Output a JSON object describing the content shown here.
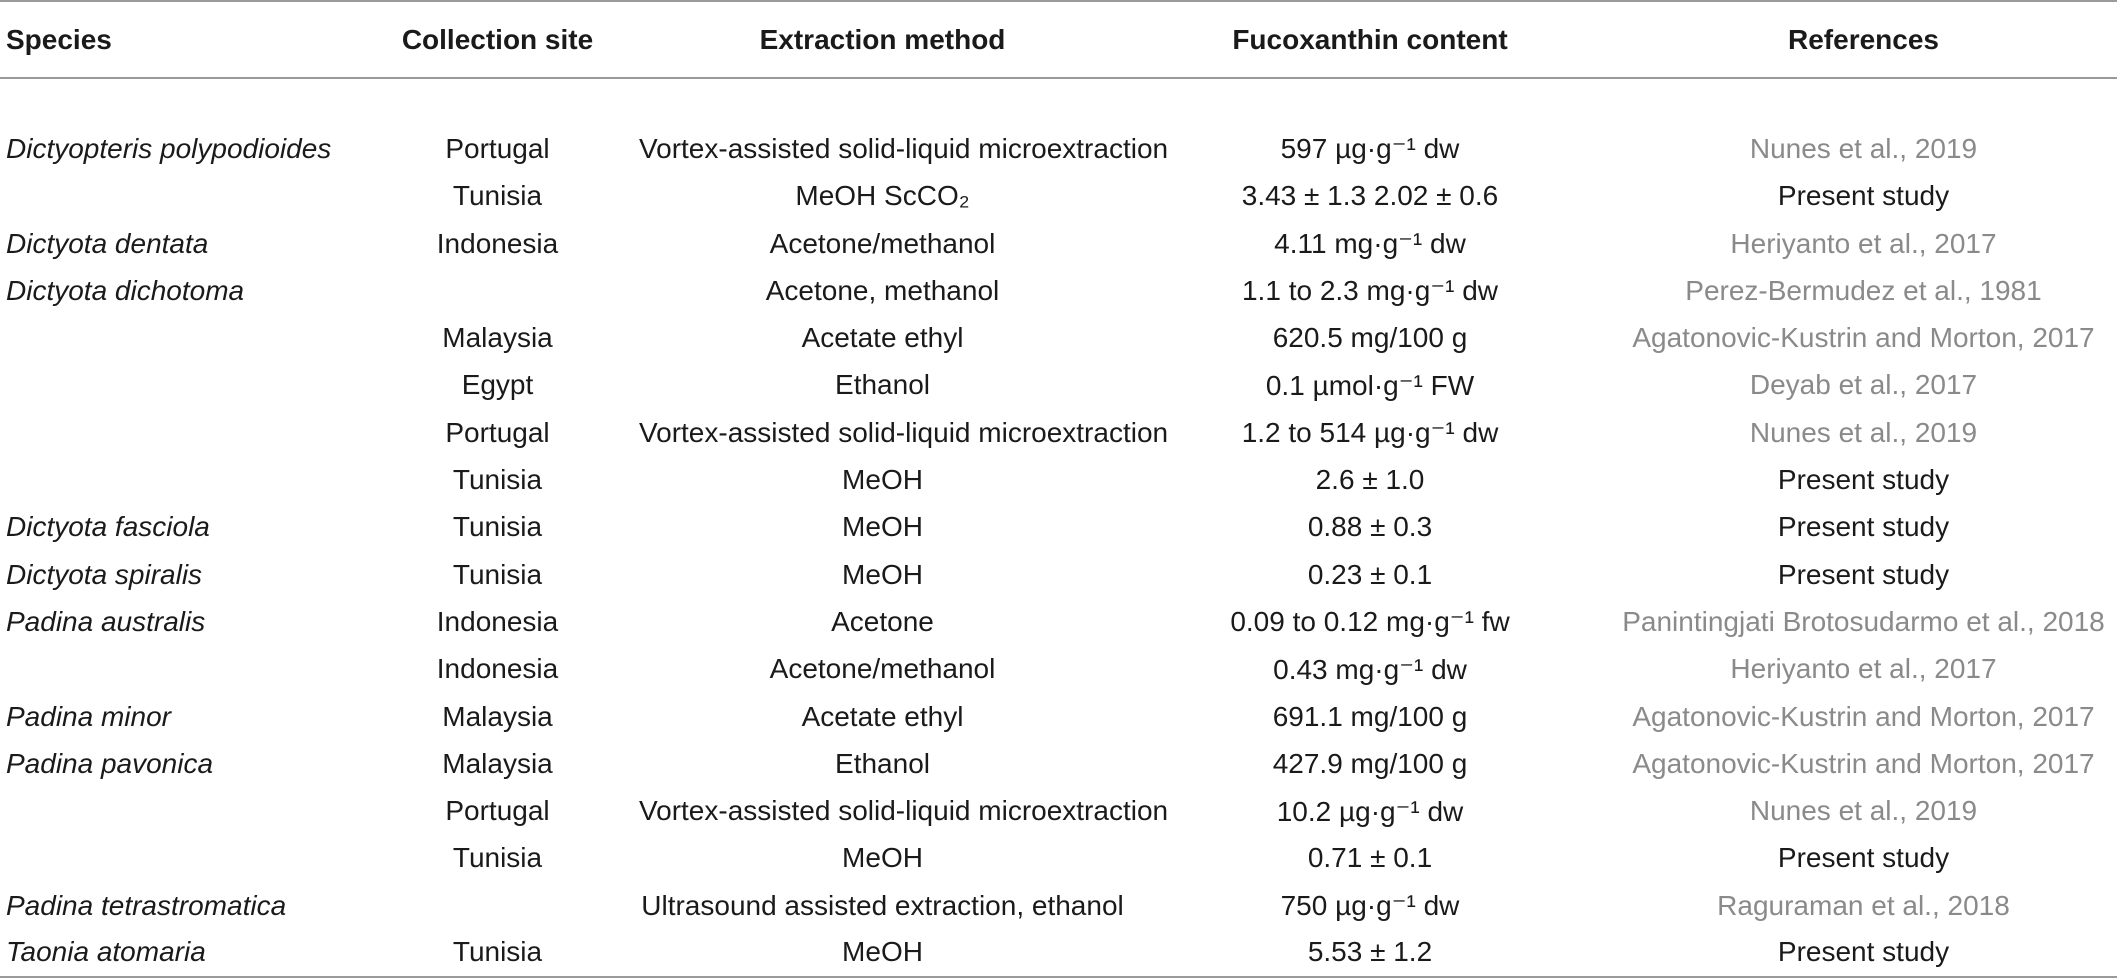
{
  "headers": {
    "species": "Species",
    "collection_site": "Collection site",
    "extraction_method": "Extraction method",
    "fucoxanthin_content": "Fucoxanthin content",
    "references": "References"
  },
  "rows": [
    {
      "species": "Dictyopteris polypodioides",
      "site": "Portugal",
      "method": "Vortex-assisted solid-liquid microextraction",
      "content": "597 µg·g⁻¹ dw",
      "reference": "Nunes et al., 2019",
      "ref_type": "cited"
    },
    {
      "species": "",
      "site": "Tunisia",
      "method": "MeOH ScCO₂",
      "content": "3.43 ± 1.3 2.02 ± 0.6",
      "reference": "Present study",
      "ref_type": "present"
    },
    {
      "species": "Dictyota dentata",
      "site": "Indonesia",
      "method": "Acetone/methanol",
      "content": "4.11 mg·g⁻¹ dw",
      "reference": "Heriyanto et al., 2017",
      "ref_type": "cited"
    },
    {
      "species": "Dictyota dichotoma",
      "site": "",
      "method": "Acetone, methanol",
      "content": "1.1 to 2.3 mg·g⁻¹ dw",
      "reference": "Perez-Bermudez et al., 1981",
      "ref_type": "cited"
    },
    {
      "species": "",
      "site": "Malaysia",
      "method": "Acetate ethyl",
      "content": "620.5 mg/100 g",
      "reference": "Agatonovic-Kustrin and Morton, 2017",
      "ref_type": "cited"
    },
    {
      "species": "",
      "site": "Egypt",
      "method": "Ethanol",
      "content": "0.1 µmol·g⁻¹ FW",
      "reference": "Deyab et al., 2017",
      "ref_type": "cited"
    },
    {
      "species": "",
      "site": "Portugal",
      "method": "Vortex-assisted solid-liquid microextraction",
      "content": "1.2 to 514 µg·g⁻¹ dw",
      "reference": "Nunes et al., 2019",
      "ref_type": "cited"
    },
    {
      "species": "",
      "site": "Tunisia",
      "method": "MeOH",
      "content": "2.6 ± 1.0",
      "reference": "Present study",
      "ref_type": "present"
    },
    {
      "species": "Dictyota fasciola",
      "site": "Tunisia",
      "method": "MeOH",
      "content": "0.88 ± 0.3",
      "reference": "Present study",
      "ref_type": "present"
    },
    {
      "species": "Dictyota spiralis",
      "site": "Tunisia",
      "method": "MeOH",
      "content": "0.23 ± 0.1",
      "reference": "Present study",
      "ref_type": "present"
    },
    {
      "species": "Padina australis",
      "site": "Indonesia",
      "method": "Acetone",
      "content": "0.09 to 0.12 mg·g⁻¹ fw",
      "reference": "Panintingjati Brotosudarmo et al., 2018",
      "ref_type": "cited"
    },
    {
      "species": "",
      "site": "Indonesia",
      "method": "Acetone/methanol",
      "content": "0.43 mg·g⁻¹ dw",
      "reference": "Heriyanto et al., 2017",
      "ref_type": "cited"
    },
    {
      "species": "Padina minor",
      "site": "Malaysia",
      "method": "Acetate ethyl",
      "content": "691.1 mg/100 g",
      "reference": "Agatonovic-Kustrin and Morton, 2017",
      "ref_type": "cited"
    },
    {
      "species": "Padina pavonica",
      "site": "Malaysia",
      "method": "Ethanol",
      "content": "427.9 mg/100 g",
      "reference": "Agatonovic-Kustrin and Morton, 2017",
      "ref_type": "cited"
    },
    {
      "species": "",
      "site": "Portugal",
      "method": "Vortex-assisted solid-liquid microextraction",
      "content": "10.2 µg·g⁻¹ dw",
      "reference": "Nunes et al., 2019",
      "ref_type": "cited"
    },
    {
      "species": "",
      "site": "Tunisia",
      "method": "MeOH",
      "content": "0.71 ± 0.1",
      "reference": "Present study",
      "ref_type": "present"
    },
    {
      "species": "Padina tetrastromatica",
      "site": "",
      "method": "Ultrasound assisted extraction, ethanol",
      "content": "750 µg·g⁻¹ dw",
      "reference": "Raguraman et al., 2018",
      "ref_type": "cited"
    },
    {
      "species": "Taonia atomaria",
      "site": "Tunisia",
      "method": "MeOH",
      "content": "5.53 ± 1.2",
      "reference": "Present study",
      "ref_type": "present"
    }
  ],
  "colors": {
    "text": "#1a1a1a",
    "cited_reference": "#8a8a8a",
    "rule": "#9a9a9a"
  }
}
